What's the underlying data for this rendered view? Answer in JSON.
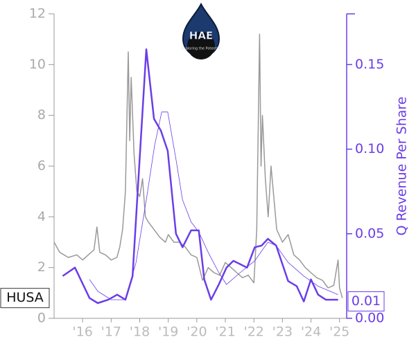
{
  "chart_data": {
    "type": "line",
    "logo_text": "HAE",
    "logo_subtext": "Exploring the Potential",
    "y2_label": "Q Revenue Per Share",
    "ticker_label": "HUSA",
    "y2_value_label": 0.01,
    "xlim": [
      2015,
      2025.25
    ],
    "xticks": [
      {
        "value": 2016,
        "label": "'16"
      },
      {
        "value": 2017,
        "label": "'17"
      },
      {
        "value": 2018,
        "label": "'18"
      },
      {
        "value": 2019,
        "label": "'19"
      },
      {
        "value": 2020,
        "label": "'20"
      },
      {
        "value": 2021,
        "label": "'21"
      },
      {
        "value": 2022,
        "label": "'22"
      },
      {
        "value": 2023,
        "label": "'23"
      },
      {
        "value": 2024,
        "label": "'24"
      },
      {
        "value": 2025,
        "label": "'25"
      }
    ],
    "ylim": [
      0,
      12
    ],
    "yticks": [
      0,
      2,
      4,
      6,
      8,
      10,
      12
    ],
    "y2lim": [
      0,
      0.18
    ],
    "y2ticks": [
      {
        "value": 0,
        "label": "0.00"
      },
      {
        "value": 0.05,
        "label": "0.05"
      },
      {
        "value": 0.1,
        "label": "0.10"
      },
      {
        "value": 0.15,
        "label": "0.15"
      }
    ],
    "series": [
      {
        "color": "#999999",
        "width": 1.5,
        "x": [
          2015.0,
          2015.2,
          2015.5,
          2015.8,
          2016.0,
          2016.2,
          2016.4,
          2016.5,
          2016.6,
          2016.8,
          2017.0,
          2017.2,
          2017.3,
          2017.4,
          2017.5,
          2017.6,
          2017.65,
          2017.7,
          2017.8,
          2017.9,
          2018.0,
          2018.1,
          2018.2,
          2018.3,
          2018.5,
          2018.7,
          2018.9,
          2019.0,
          2019.2,
          2019.4,
          2019.6,
          2019.8,
          2020.0,
          2020.2,
          2020.4,
          2020.6,
          2020.8,
          2021.0,
          2021.2,
          2021.4,
          2021.6,
          2021.8,
          2022.0,
          2022.1,
          2022.2,
          2022.25,
          2022.3,
          2022.4,
          2022.5,
          2022.6,
          2022.8,
          2023.0,
          2023.2,
          2023.4,
          2023.6,
          2023.8,
          2024.0,
          2024.2,
          2024.4,
          2024.6,
          2024.8,
          2024.95,
          2025.0,
          2025.1
        ],
        "values": [
          3.0,
          2.6,
          2.4,
          2.5,
          2.3,
          2.5,
          2.7,
          3.6,
          2.6,
          2.5,
          2.3,
          2.4,
          2.8,
          3.5,
          5.0,
          10.5,
          7.0,
          9.5,
          6.5,
          5.0,
          4.8,
          5.5,
          4.0,
          3.8,
          3.5,
          3.2,
          3.0,
          3.3,
          3.0,
          3.0,
          2.8,
          2.5,
          2.4,
          1.5,
          2.0,
          1.8,
          1.7,
          2.2,
          2.0,
          1.8,
          1.6,
          1.7,
          1.4,
          3.5,
          11.2,
          6.0,
          8.0,
          5.5,
          4.0,
          6.0,
          3.5,
          3.0,
          3.3,
          2.5,
          2.3,
          2.0,
          1.8,
          1.6,
          1.5,
          1.2,
          1.3,
          2.3,
          1.2,
          0.8
        ]
      },
      {
        "color": "#6a3de8",
        "width": 2.5,
        "axis": "y2",
        "x": [
          2015.3,
          2015.73,
          2016.24,
          2016.53,
          2016.9,
          2017.21,
          2017.5,
          2017.75,
          2018.23,
          2018.5,
          2018.74,
          2018.98,
          2019.27,
          2019.5,
          2019.8,
          2020.07,
          2020.26,
          2020.5,
          2020.77,
          2021.04,
          2021.28,
          2021.52,
          2021.76,
          2022.03,
          2022.27,
          2022.49,
          2022.78,
          2023.2,
          2023.5,
          2023.75,
          2024.0,
          2024.25,
          2024.52,
          2024.7,
          2024.95
        ],
        "values": [
          0.025,
          0.03,
          0.012,
          0.009,
          0.011,
          0.014,
          0.011,
          0.025,
          0.159,
          0.118,
          0.111,
          0.099,
          0.05,
          0.042,
          0.052,
          0.052,
          0.023,
          0.011,
          0.02,
          0.03,
          0.034,
          0.032,
          0.03,
          0.042,
          0.043,
          0.047,
          0.043,
          0.022,
          0.019,
          0.01,
          0.023,
          0.014,
          0.011,
          0.011,
          0.011
        ]
      },
      {
        "color": "#6a3de8",
        "width": 0.8,
        "axis": "y2",
        "x": [
          2016.24,
          2016.53,
          2017.0,
          2017.5,
          2017.87,
          2018.23,
          2018.52,
          2018.77,
          2018.98,
          2019.27,
          2019.5,
          2019.8,
          2020.07,
          2020.4,
          2020.77,
          2021.04,
          2021.52,
          2022.03,
          2022.49,
          2022.78,
          2023.2,
          2023.75,
          2024.25,
          2024.95
        ],
        "values": [
          0.023,
          0.016,
          0.011,
          0.011,
          0.033,
          0.07,
          0.102,
          0.122,
          0.122,
          0.094,
          0.07,
          0.057,
          0.051,
          0.039,
          0.027,
          0.02,
          0.027,
          0.034,
          0.045,
          0.043,
          0.033,
          0.025,
          0.019,
          0.014
        ]
      }
    ]
  }
}
